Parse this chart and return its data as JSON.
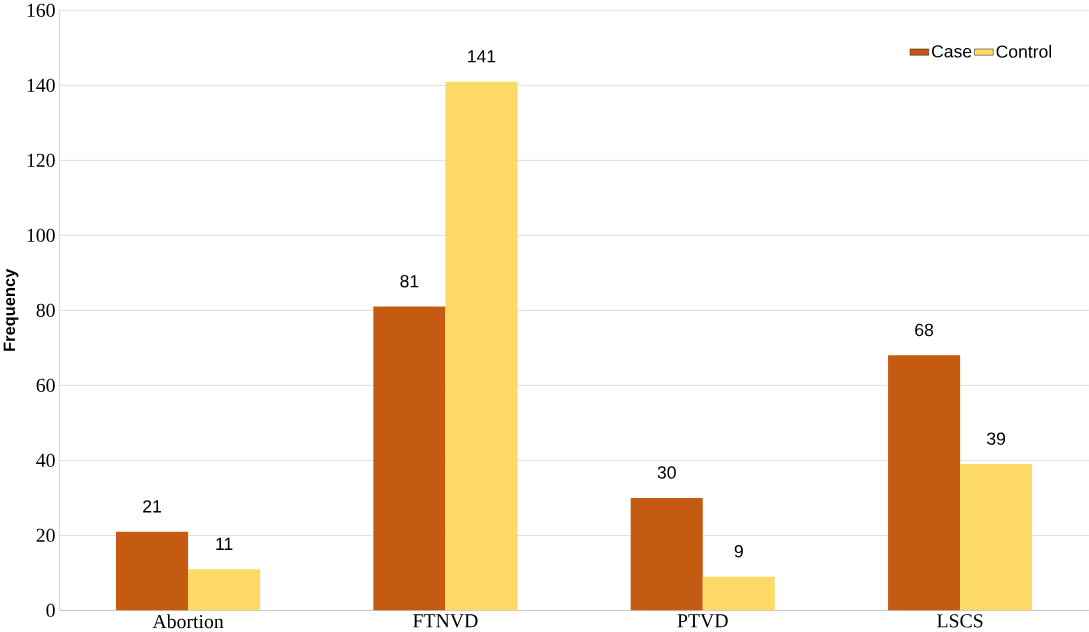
{
  "chart_data": {
    "type": "bar",
    "ylabel": "Frequency",
    "categories": [
      "Abortion",
      "FTNVD",
      "PTVD",
      "LSCS"
    ],
    "series": [
      {
        "name": "Case",
        "color": "#c55a11",
        "values": [
          21,
          81,
          30,
          68
        ]
      },
      {
        "name": "Control",
        "color": "#ffd966",
        "values": [
          11,
          141,
          9,
          39
        ]
      }
    ],
    "ylim": [
      0,
      160
    ],
    "yticks": [
      0,
      20,
      40,
      60,
      80,
      100,
      120,
      140,
      160
    ],
    "grid": "y",
    "legend": "top right",
    "data_labels": true
  }
}
